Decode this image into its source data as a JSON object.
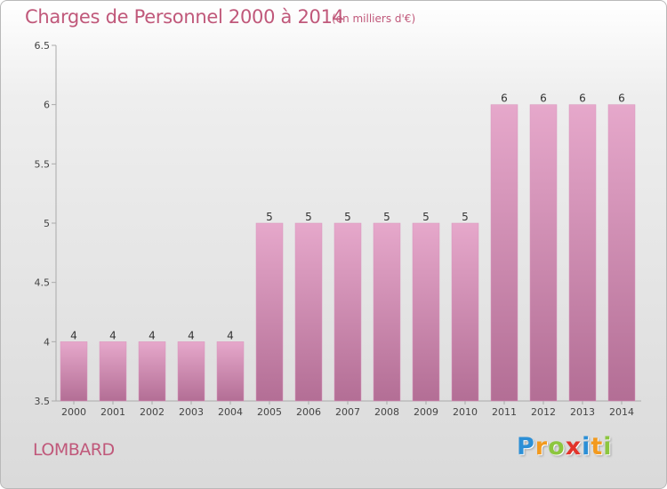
{
  "chart_data": {
    "type": "bar",
    "title": "Charges de Personnel 2000 à 2014",
    "subtitle": "(en milliers d'€)",
    "categories": [
      "2000",
      "2001",
      "2002",
      "2003",
      "2004",
      "2005",
      "2006",
      "2007",
      "2008",
      "2009",
      "2010",
      "2011",
      "2012",
      "2013",
      "2014"
    ],
    "values": [
      4,
      4,
      4,
      4,
      4,
      5,
      5,
      5,
      5,
      5,
      5,
      6,
      6,
      6,
      6
    ],
    "ylim": [
      3.5,
      6.5
    ],
    "yticks": [
      "3.5",
      "4",
      "4.5",
      "5",
      "5.5",
      "6",
      "6.5"
    ],
    "grid": false,
    "bar_color_top": "#e6a8cb",
    "bar_color_bottom": "#b36e95"
  },
  "footer": {
    "commune": "LOMBARD",
    "logo_letters": [
      {
        "ch": "P",
        "color": "#2c8fd6"
      },
      {
        "ch": "r",
        "color": "#f29a1f"
      },
      {
        "ch": "o",
        "color": "#8cc63e"
      },
      {
        "ch": "x",
        "color": "#e2342b"
      },
      {
        "ch": "i",
        "color": "#2c8fd6"
      },
      {
        "ch": "t",
        "color": "#f29a1f"
      },
      {
        "ch": "i",
        "color": "#8cc63e"
      }
    ]
  },
  "colors": {
    "accent": "#c0587a"
  }
}
